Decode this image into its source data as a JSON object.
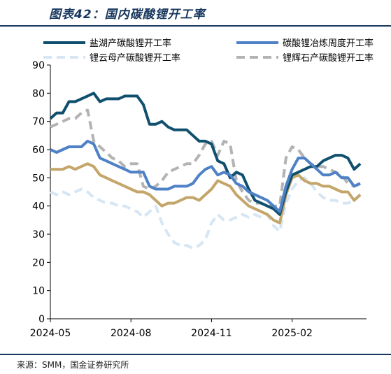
{
  "figure_title": "图表42：国内碳酸锂开工率",
  "source": "来源：SMM，国金证券研究所",
  "chart_data": {
    "type": "line",
    "xlabel": "",
    "ylabel": "",
    "ylim": [
      0,
      90
    ],
    "yticks": [
      0,
      10,
      20,
      30,
      40,
      50,
      60,
      70,
      80,
      90
    ],
    "xticks": [
      "2024-05",
      "2024-08",
      "2024-11",
      "2025-02"
    ],
    "x_range_weeks": [
      0,
      51
    ],
    "xtick_weeks": [
      0,
      13,
      26,
      39
    ],
    "grid": false,
    "legend": "top",
    "series": [
      {
        "name": "盐湖产碳酸锂开工率",
        "color": "#10506e",
        "style": "solid",
        "width": 4,
        "values": [
          71,
          73,
          73,
          77,
          77,
          78,
          79,
          80,
          77,
          78,
          78,
          78,
          79,
          79,
          79,
          76,
          69,
          69,
          70,
          68,
          67,
          67,
          67,
          65,
          63,
          63,
          62,
          56,
          55,
          50,
          52,
          51,
          46,
          42,
          41,
          40,
          39,
          37,
          45,
          51,
          52,
          53,
          54,
          54,
          56,
          57,
          58,
          58,
          57,
          53,
          55
        ]
      },
      {
        "name": "碳酸锂冶炼周度开工率",
        "color": "#4f81c7",
        "style": "solid",
        "width": 4,
        "values": [
          60,
          59,
          60,
          61,
          61,
          61,
          63,
          62,
          57,
          56,
          55,
          54,
          53,
          52,
          52,
          52,
          47,
          46,
          46,
          46,
          47,
          47,
          47,
          48,
          51,
          53,
          54,
          51,
          52,
          51,
          48,
          47,
          45,
          44,
          43,
          42,
          40,
          38,
          47,
          53,
          57,
          57,
          55,
          53,
          51,
          51,
          52,
          50,
          50,
          47,
          48
        ]
      },
      {
        "name": "锂云母产碳酸锂开工率",
        "color": "#d6e6f4",
        "style": "dash",
        "width": 4,
        "values": [
          45,
          44,
          45,
          44,
          45,
          46,
          45,
          43,
          42,
          41,
          41,
          40,
          40,
          39,
          38,
          36,
          38,
          40,
          34,
          30,
          27,
          26,
          26,
          25,
          26,
          28,
          34,
          37,
          35,
          35,
          36,
          37,
          36,
          37,
          36,
          37,
          33,
          31,
          41,
          46,
          49,
          50,
          48,
          45,
          43,
          42,
          42,
          41,
          41,
          42,
          44
        ]
      },
      {
        "name": "锂辉石产碳酸锂开工率",
        "color": "#b3b3b3",
        "style": "dash",
        "width": 4,
        "values": [
          68,
          69,
          70,
          71,
          71,
          73,
          74,
          63,
          61,
          59,
          57,
          56,
          54,
          55,
          55,
          47,
          46,
          47,
          49,
          52,
          53,
          54,
          55,
          55,
          58,
          62,
          63,
          58,
          63,
          62,
          49,
          45,
          42,
          41,
          41,
          40,
          40,
          40,
          57,
          61,
          60,
          57,
          55,
          54,
          54,
          53,
          52,
          51,
          48,
          47,
          48
        ]
      },
      {
        "name": "",
        "color": "#c4a56a",
        "style": "solid",
        "width": 4,
        "values": [
          53,
          53,
          53,
          54,
          53,
          54,
          55,
          54,
          51,
          50,
          49,
          48,
          47,
          46,
          45,
          45,
          44,
          42,
          40,
          41,
          41,
          42,
          43,
          43,
          42,
          44,
          46,
          49,
          48,
          47,
          44,
          42,
          40,
          39,
          38,
          37,
          35,
          34,
          44,
          50,
          51,
          49,
          48,
          48,
          47,
          47,
          46,
          45,
          45,
          42,
          44
        ]
      }
    ]
  }
}
